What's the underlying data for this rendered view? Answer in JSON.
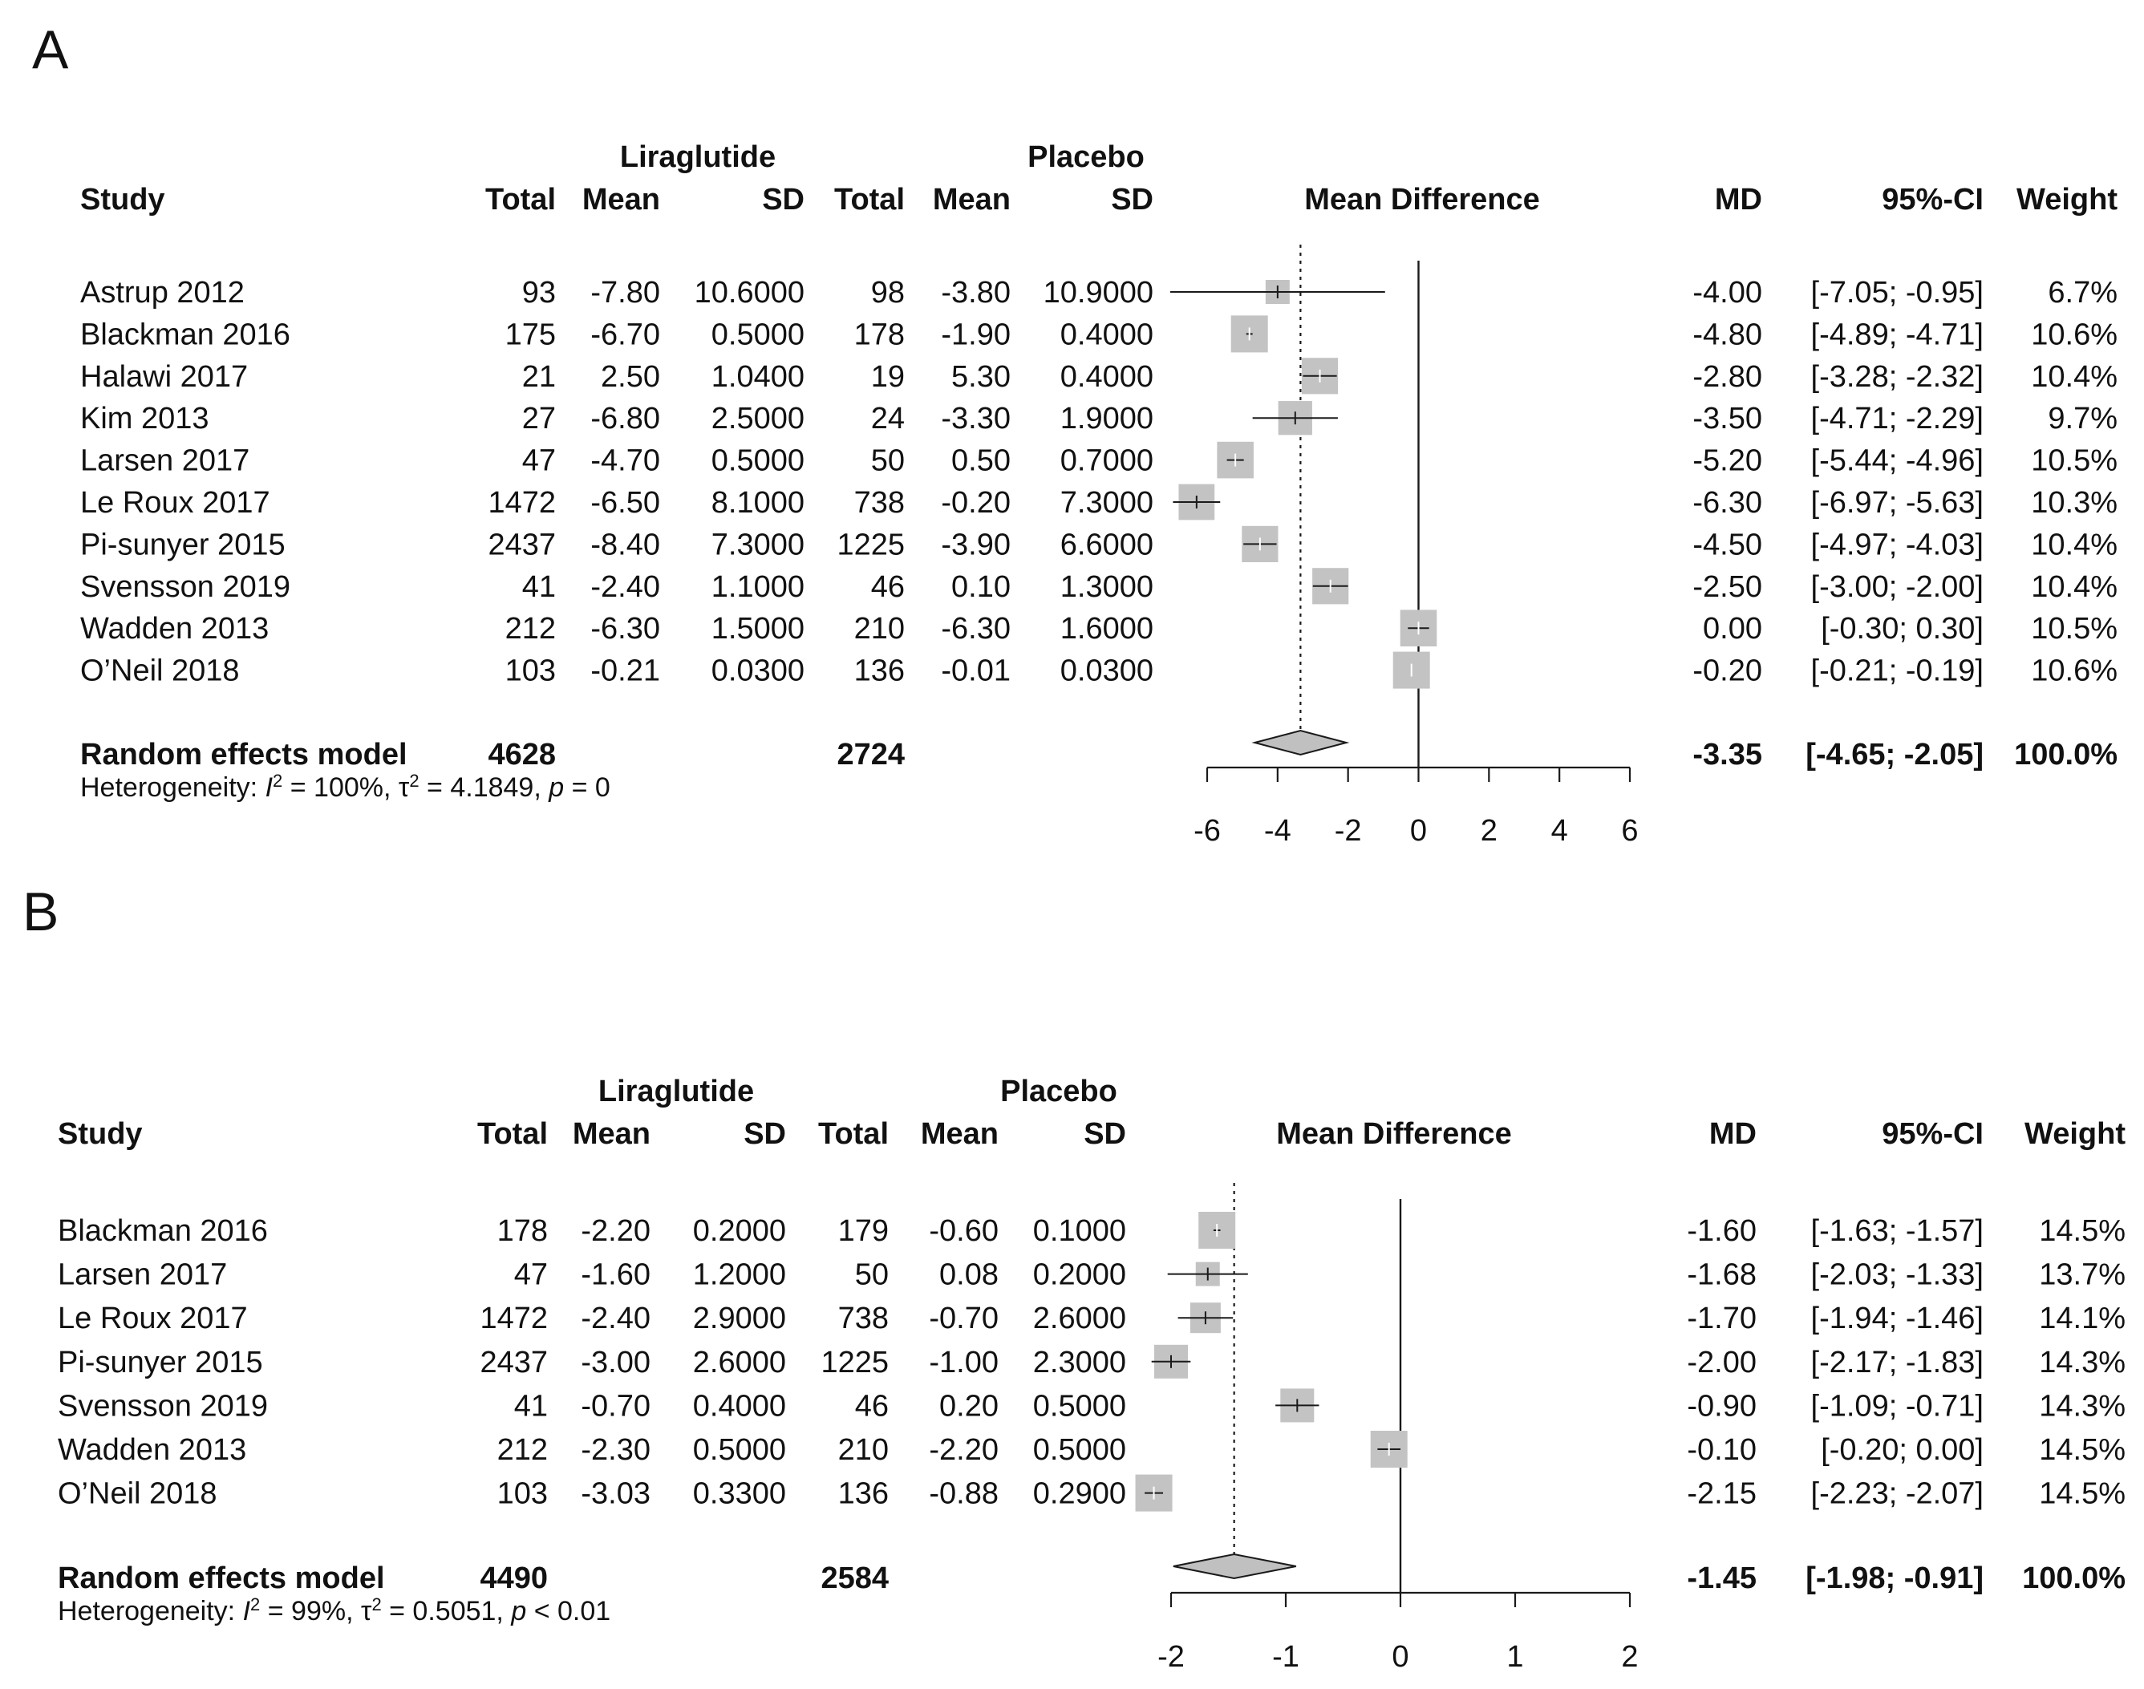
{
  "chart_data": [
    {
      "panel": "A",
      "type": "forest",
      "group1": "Liraglutide",
      "group2": "Placebo",
      "headers": {
        "study": "Study",
        "total": "Total",
        "mean": "Mean",
        "sd": "SD",
        "effect": "Mean Difference",
        "md": "MD",
        "ci": "95%-CI",
        "weight": "Weight"
      },
      "xlim": [
        -6,
        6
      ],
      "ticks": [
        -6,
        -4,
        -2,
        0,
        2,
        4,
        6
      ],
      "tick_labels": [
        "-6",
        "-4",
        "-2",
        "0",
        "2",
        "4",
        "6"
      ],
      "studies": [
        {
          "study": "Astrup 2012",
          "n1": "93",
          "m1": "-7.80",
          "sd1": "10.6000",
          "n2": "98",
          "m2": "-3.80",
          "sd2": "10.9000",
          "md": -4.0,
          "lo": -7.05,
          "hi": -0.95,
          "md_text": "-4.00",
          "ci_text": "[-7.05; -0.95]",
          "weight": 6.7,
          "weight_text": "6.7%"
        },
        {
          "study": "Blackman 2016",
          "n1": "175",
          "m1": "-6.70",
          "sd1": "0.5000",
          "n2": "178",
          "m2": "-1.90",
          "sd2": "0.4000",
          "md": -4.8,
          "lo": -4.89,
          "hi": -4.71,
          "md_text": "-4.80",
          "ci_text": "[-4.89; -4.71]",
          "weight": 10.6,
          "weight_text": "10.6%"
        },
        {
          "study": "Halawi 2017",
          "n1": "21",
          "m1": "2.50",
          "sd1": "1.0400",
          "n2": "19",
          "m2": "5.30",
          "sd2": "0.4000",
          "md": -2.8,
          "lo": -3.28,
          "hi": -2.32,
          "md_text": "-2.80",
          "ci_text": "[-3.28; -2.32]",
          "weight": 10.4,
          "weight_text": "10.4%"
        },
        {
          "study": "Kim 2013",
          "n1": "27",
          "m1": "-6.80",
          "sd1": "2.5000",
          "n2": "24",
          "m2": "-3.30",
          "sd2": "1.9000",
          "md": -3.5,
          "lo": -4.71,
          "hi": -2.29,
          "md_text": "-3.50",
          "ci_text": "[-4.71; -2.29]",
          "weight": 9.7,
          "weight_text": "9.7%"
        },
        {
          "study": "Larsen 2017",
          "n1": "47",
          "m1": "-4.70",
          "sd1": "0.5000",
          "n2": "50",
          "m2": "0.50",
          "sd2": "0.7000",
          "md": -5.2,
          "lo": -5.44,
          "hi": -4.96,
          "md_text": "-5.20",
          "ci_text": "[-5.44; -4.96]",
          "weight": 10.5,
          "weight_text": "10.5%"
        },
        {
          "study": "Le Roux 2017",
          "n1": "1472",
          "m1": "-6.50",
          "sd1": "8.1000",
          "n2": "738",
          "m2": "-0.20",
          "sd2": "7.3000",
          "md": -6.3,
          "lo": -6.97,
          "hi": -5.63,
          "md_text": "-6.30",
          "ci_text": "[-6.97; -5.63]",
          "weight": 10.3,
          "weight_text": "10.3%"
        },
        {
          "study": "Pi-sunyer 2015",
          "n1": "2437",
          "m1": "-8.40",
          "sd1": "7.3000",
          "n2": "1225",
          "m2": "-3.90",
          "sd2": "6.6000",
          "md": -4.5,
          "lo": -4.97,
          "hi": -4.03,
          "md_text": "-4.50",
          "ci_text": "[-4.97; -4.03]",
          "weight": 10.4,
          "weight_text": "10.4%"
        },
        {
          "study": "Svensson 2019",
          "n1": "41",
          "m1": "-2.40",
          "sd1": "1.1000",
          "n2": "46",
          "m2": "0.10",
          "sd2": "1.3000",
          "md": -2.5,
          "lo": -3.0,
          "hi": -2.0,
          "md_text": "-2.50",
          "ci_text": "[-3.00; -2.00]",
          "weight": 10.4,
          "weight_text": "10.4%"
        },
        {
          "study": "Wadden 2013",
          "n1": "212",
          "m1": "-6.30",
          "sd1": "1.5000",
          "n2": "210",
          "m2": "-6.30",
          "sd2": "1.6000",
          "md": 0.0,
          "lo": -0.3,
          "hi": 0.3,
          "md_text": "0.00",
          "ci_text": "[-0.30;  0.30]",
          "weight": 10.5,
          "weight_text": "10.5%"
        },
        {
          "study": "O’Neil 2018",
          "n1": "103",
          "m1": "-0.21",
          "sd1": "0.0300",
          "n2": "136",
          "m2": "-0.01",
          "sd2": "0.0300",
          "md": -0.2,
          "lo": -0.21,
          "hi": -0.19,
          "md_text": "-0.20",
          "ci_text": "[-0.21; -0.19]",
          "weight": 10.6,
          "weight_text": "10.6%"
        }
      ],
      "pooled": {
        "label": "Random effects model",
        "n1": "4628",
        "n2": "2724",
        "md": -3.35,
        "lo": -4.65,
        "hi": -2.05,
        "md_text": "-3.35",
        "ci_text": "[-4.65; -2.05]",
        "weight_text": "100.0%"
      },
      "heterogeneity": {
        "prefix": "Heterogeneity: ",
        "i_label": "I",
        "sup": "2",
        "i2_text": " = 100%, ",
        "tau": "τ",
        "tau_text": " = 4.1849, ",
        "p_label": "p",
        "p_text": " = 0"
      }
    },
    {
      "panel": "B",
      "type": "forest",
      "group1": "Liraglutide",
      "group2": "Placebo",
      "headers": {
        "study": "Study",
        "total": "Total",
        "mean": "Mean",
        "sd": "SD",
        "effect": "Mean Difference",
        "md": "MD",
        "ci": "95%-CI",
        "weight": "Weight"
      },
      "xlim": [
        -2,
        2
      ],
      "ticks": [
        -2,
        -1,
        0,
        1,
        2
      ],
      "tick_labels": [
        "-2",
        "-1",
        "0",
        "1",
        "2"
      ],
      "studies": [
        {
          "study": "Blackman 2016",
          "n1": "178",
          "m1": "-2.20",
          "sd1": "0.2000",
          "n2": "179",
          "m2": "-0.60",
          "sd2": "0.1000",
          "md": -1.6,
          "lo": -1.63,
          "hi": -1.57,
          "md_text": "-1.60",
          "ci_text": "[-1.63; -1.57]",
          "weight": 14.5,
          "weight_text": "14.5%"
        },
        {
          "study": "Larsen 2017",
          "n1": "47",
          "m1": "-1.60",
          "sd1": "1.2000",
          "n2": "50",
          "m2": "0.08",
          "sd2": "0.2000",
          "md": -1.68,
          "lo": -2.03,
          "hi": -1.33,
          "md_text": "-1.68",
          "ci_text": "[-2.03; -1.33]",
          "weight": 13.7,
          "weight_text": "13.7%"
        },
        {
          "study": "Le Roux 2017",
          "n1": "1472",
          "m1": "-2.40",
          "sd1": "2.9000",
          "n2": "738",
          "m2": "-0.70",
          "sd2": "2.6000",
          "md": -1.7,
          "lo": -1.94,
          "hi": -1.46,
          "md_text": "-1.70",
          "ci_text": "[-1.94; -1.46]",
          "weight": 14.1,
          "weight_text": "14.1%"
        },
        {
          "study": "Pi-sunyer 2015",
          "n1": "2437",
          "m1": "-3.00",
          "sd1": "2.6000",
          "n2": "1225",
          "m2": "-1.00",
          "sd2": "2.3000",
          "md": -2.0,
          "lo": -2.17,
          "hi": -1.83,
          "md_text": "-2.00",
          "ci_text": "[-2.17; -1.83]",
          "weight": 14.3,
          "weight_text": "14.3%"
        },
        {
          "study": "Svensson 2019",
          "n1": "41",
          "m1": "-0.70",
          "sd1": "0.4000",
          "n2": "46",
          "m2": "0.20",
          "sd2": "0.5000",
          "md": -0.9,
          "lo": -1.09,
          "hi": -0.71,
          "md_text": "-0.90",
          "ci_text": "[-1.09; -0.71]",
          "weight": 14.3,
          "weight_text": "14.3%"
        },
        {
          "study": "Wadden 2013",
          "n1": "212",
          "m1": "-2.30",
          "sd1": "0.5000",
          "n2": "210",
          "m2": "-2.20",
          "sd2": "0.5000",
          "md": -0.1,
          "lo": -0.2,
          "hi": 0.0,
          "md_text": "-0.10",
          "ci_text": "[-0.20;  0.00]",
          "weight": 14.5,
          "weight_text": "14.5%"
        },
        {
          "study": "O’Neil 2018",
          "n1": "103",
          "m1": "-3.03",
          "sd1": "0.3300",
          "n2": "136",
          "m2": "-0.88",
          "sd2": "0.2900",
          "md": -2.15,
          "lo": -2.23,
          "hi": -2.07,
          "md_text": "-2.15",
          "ci_text": "[-2.23; -2.07]",
          "weight": 14.5,
          "weight_text": "14.5%"
        }
      ],
      "pooled": {
        "label": "Random effects model",
        "n1": "4490",
        "n2": "2584",
        "md": -1.45,
        "lo": -1.98,
        "hi": -0.91,
        "md_text": "-1.45",
        "ci_text": "[-1.98; -0.91]",
        "weight_text": "100.0%"
      },
      "heterogeneity": {
        "prefix": "Heterogeneity: ",
        "i_label": "I",
        "sup": "2",
        "i2_text": " = 99%, ",
        "tau": "τ",
        "tau_text": " = 0.5051, ",
        "p_label": "p",
        "p_text": " < 0.01"
      }
    }
  ],
  "colors": {
    "box": "#c3c3c3",
    "text": "#111111",
    "line": "#1a1a1a",
    "diamond": "#c0c0c0"
  }
}
